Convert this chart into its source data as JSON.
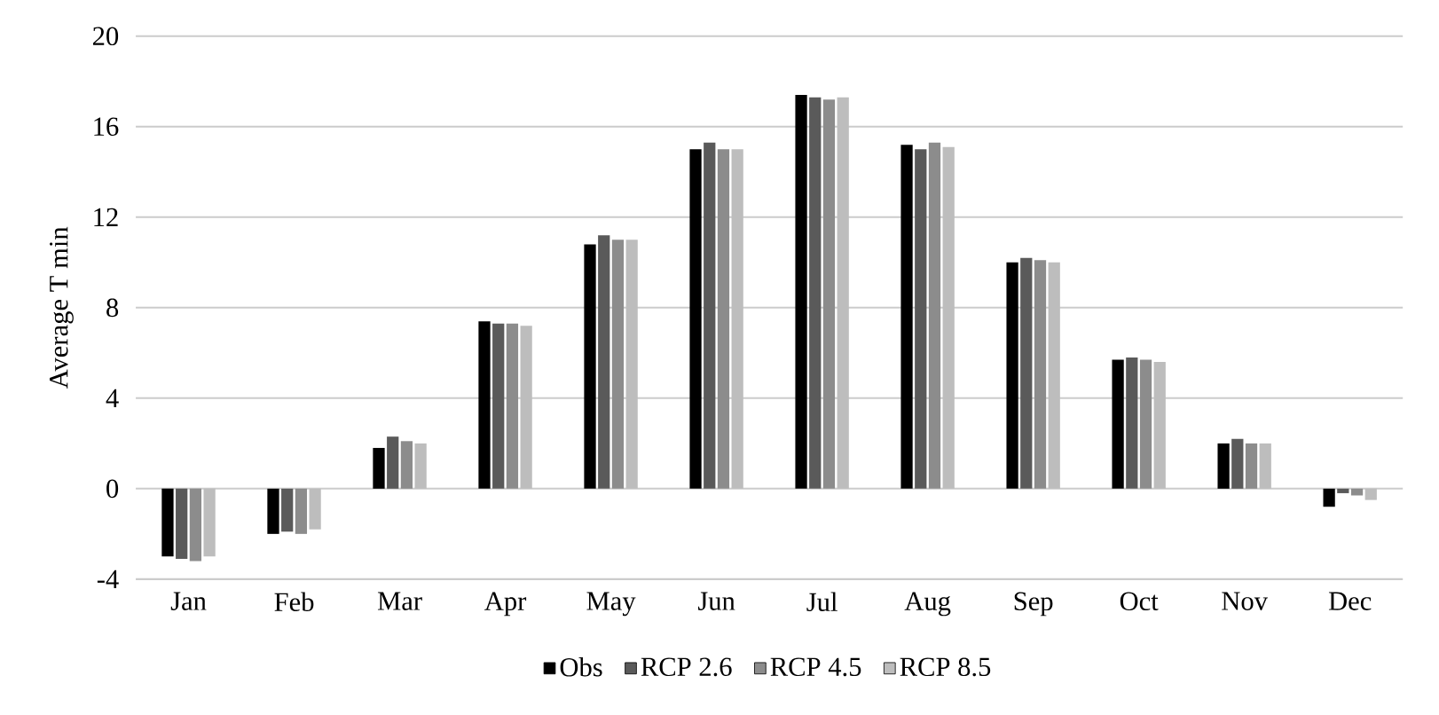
{
  "chart_data": {
    "type": "bar",
    "ylabel": "Average  T min",
    "categories": [
      "Jan",
      "Feb",
      "Mar",
      "Apr",
      "May",
      "Jun",
      "Jul",
      "Aug",
      "Sep",
      "Oct",
      "Nov",
      "Dec"
    ],
    "series": [
      {
        "name": "Obs",
        "color": "#000000",
        "values": [
          -3.0,
          -2.0,
          1.8,
          7.4,
          10.8,
          15.0,
          17.4,
          15.2,
          10.0,
          5.7,
          2.0,
          -0.8
        ]
      },
      {
        "name": "RCP 2.6",
        "color": "#5a5a5a",
        "values": [
          -3.1,
          -1.9,
          2.3,
          7.3,
          11.2,
          15.3,
          17.3,
          15.0,
          10.2,
          5.8,
          2.2,
          -0.2
        ]
      },
      {
        "name": "RCP 4.5",
        "color": "#8c8c8c",
        "values": [
          -3.2,
          -2.0,
          2.1,
          7.3,
          11.0,
          15.0,
          17.2,
          15.3,
          10.1,
          5.7,
          2.0,
          -0.3
        ]
      },
      {
        "name": "RCP 8.5",
        "color": "#bdbdbd",
        "values": [
          -3.0,
          -1.8,
          2.0,
          7.2,
          11.0,
          15.0,
          17.3,
          15.1,
          10.0,
          5.6,
          2.0,
          -0.5
        ]
      }
    ],
    "ylim": [
      -4,
      20
    ],
    "yticks": [
      -4,
      0,
      4,
      8,
      12,
      16,
      20
    ],
    "grid": "y",
    "legend": "bottom"
  }
}
